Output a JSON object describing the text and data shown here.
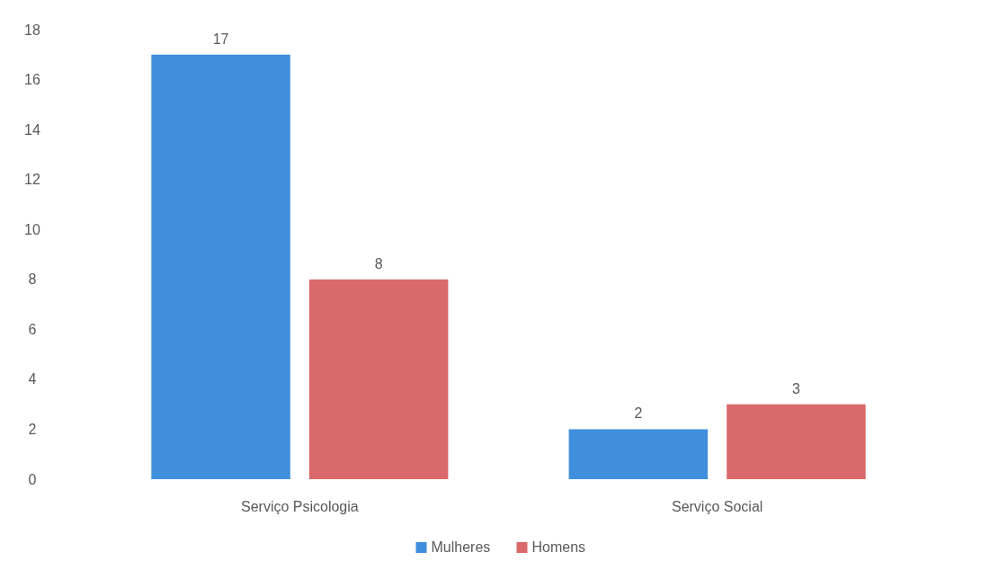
{
  "chart_data": {
    "type": "bar",
    "categories": [
      "Serviço Psicologia",
      "Serviço Social"
    ],
    "series": [
      {
        "name": "Mulheres",
        "color": "#3f8fdc",
        "values": [
          17,
          2
        ]
      },
      {
        "name": "Homens",
        "color": "#d9696a",
        "values": [
          8,
          3
        ]
      }
    ],
    "ylim": [
      0,
      18
    ],
    "yticks": [
      0,
      2,
      4,
      6,
      8,
      10,
      12,
      14,
      16,
      18
    ],
    "data_labels": true,
    "legend": "bottom",
    "grid": false
  }
}
